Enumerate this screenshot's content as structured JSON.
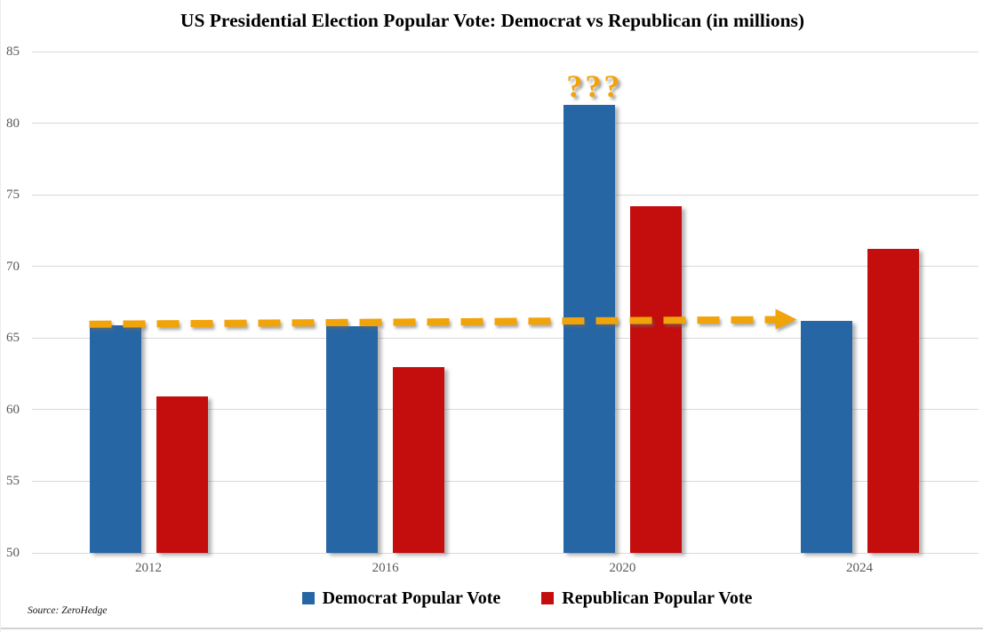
{
  "title": "US Presidential Election Popular Vote: Democrat vs Republican (in millions)",
  "source_note": "Source: ZeroHedge",
  "colors": {
    "democrat": "#2766A4",
    "republican": "#C40D0D",
    "annotation_orange": "#F1A30A",
    "gridline": "#D9D9D9",
    "tick_text": "#595959",
    "title_text": "#000000"
  },
  "legend": {
    "items": [
      {
        "label": "Democrat Popular Vote",
        "series": "democrat"
      },
      {
        "label": "Republican Popular Vote",
        "series": "republican"
      }
    ]
  },
  "annotations": {
    "question_marks": {
      "text": "???",
      "target_category": "2020",
      "target_series": "Democrat Popular Vote"
    },
    "dashed_arrow": {
      "style": "dashed",
      "color": "#F1A30A",
      "from_category": "2012",
      "to_category": "2024",
      "series": "Democrat Popular Vote",
      "meaning": "Democrat popular vote level is roughly flat from 2012 to 2024 except the 2020 spike"
    }
  },
  "chart_data": {
    "type": "bar",
    "title": "US Presidential Election Popular Vote: Democrat vs Republican (in millions)",
    "categories": [
      "2012",
      "2016",
      "2020",
      "2024"
    ],
    "series": [
      {
        "name": "Democrat Popular Vote",
        "color": "#2766A4",
        "values": [
          65.9,
          65.8,
          81.3,
          66.2
        ]
      },
      {
        "name": "Republican Popular Vote",
        "color": "#C40D0D",
        "values": [
          60.9,
          63.0,
          74.2,
          71.2
        ]
      }
    ],
    "xlabel": "",
    "ylabel": "",
    "ylim": [
      50,
      85
    ],
    "ytick_step": 5,
    "yticks": [
      85,
      80,
      75,
      70,
      65,
      60,
      55,
      50
    ],
    "grid": true,
    "legend_position": "bottom"
  }
}
